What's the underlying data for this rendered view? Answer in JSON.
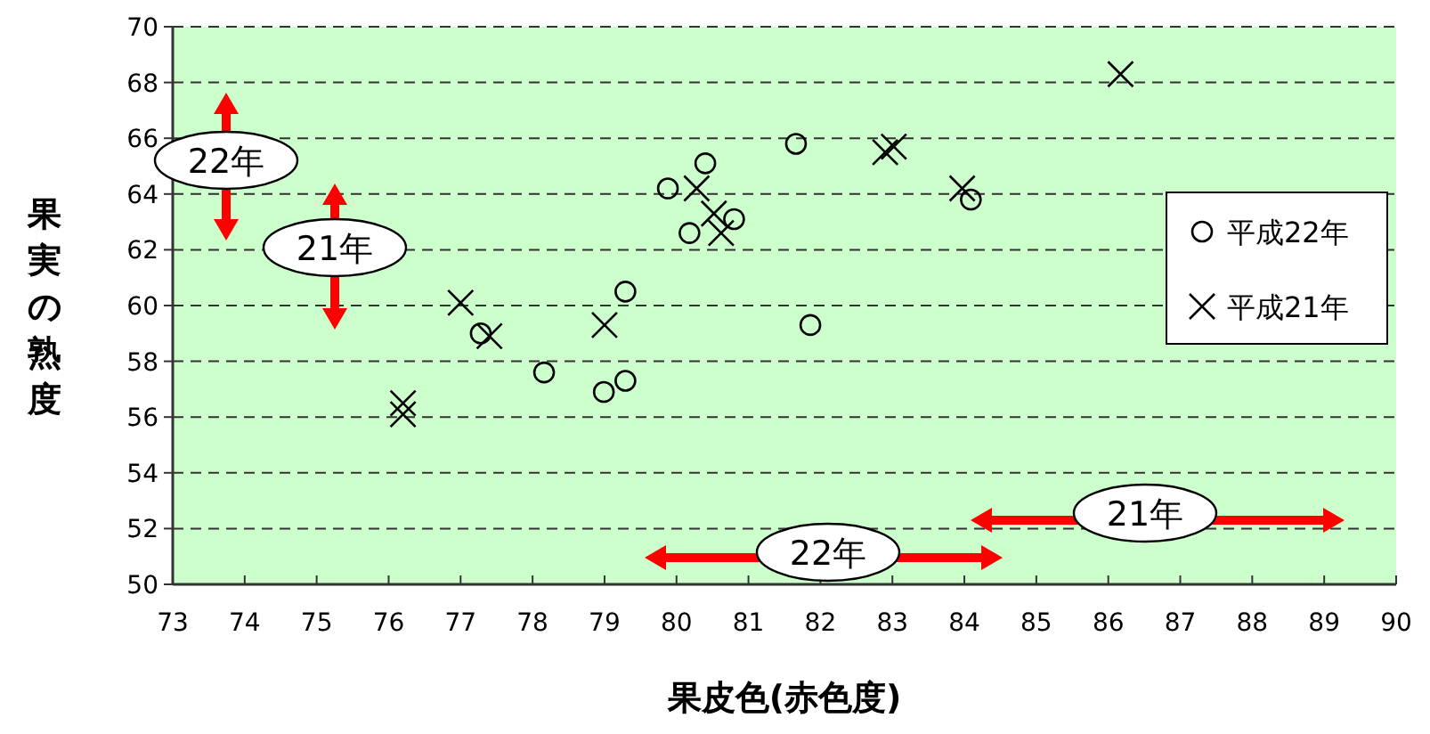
{
  "chart_data": {
    "type": "scatter",
    "xlabel": "果皮色(赤色度)",
    "ylabel": "果実の熟度",
    "xlim": [
      73,
      90
    ],
    "xticks": [
      73,
      74,
      75,
      76,
      77,
      78,
      79,
      80,
      81,
      82,
      83,
      84,
      85,
      86,
      87,
      88,
      89,
      90
    ],
    "ylim": [
      50,
      70
    ],
    "yticks": [
      50,
      52,
      54,
      56,
      58,
      60,
      62,
      64,
      66,
      68,
      70
    ],
    "grid": "y",
    "legend": "right",
    "series": [
      {
        "name": "平成22年",
        "color": "#000000",
        "marker": "circle",
        "x": [
          77.28,
          78.16,
          78.99,
          79.29,
          79.29,
          79.88,
          80.18,
          80.4,
          80.8,
          81.66,
          81.86,
          84.09
        ],
        "values": [
          59.0,
          57.6,
          56.9,
          57.3,
          60.5,
          64.2,
          62.6,
          65.1,
          63.1,
          65.8,
          59.3,
          63.8
        ]
      },
      {
        "name": "平成21年",
        "color": "#000000",
        "marker": "cross",
        "x": [
          76.2,
          76.2,
          77.0,
          77.4,
          79.0,
          80.28,
          80.52,
          80.62,
          82.9,
          83.02,
          83.97,
          86.17
        ],
        "values": [
          56.5,
          56.1,
          60.1,
          58.9,
          59.3,
          64.2,
          63.3,
          62.6,
          65.5,
          65.7,
          64.2,
          68.3
        ]
      }
    ],
    "annotations": [
      "22年",
      "21年",
      "22年",
      "21年"
    ]
  }
}
